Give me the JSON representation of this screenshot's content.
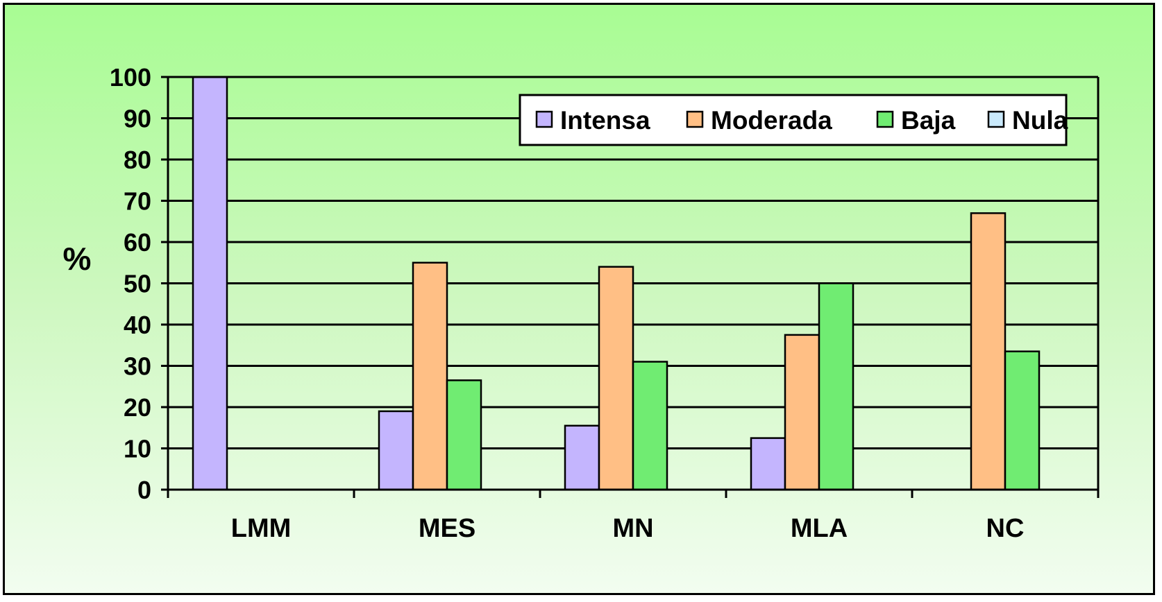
{
  "chart_data": {
    "type": "bar",
    "title": "",
    "xlabel": "",
    "ylabel": "%",
    "ylim": [
      0,
      100
    ],
    "yticks": [
      0,
      10,
      20,
      30,
      40,
      50,
      60,
      70,
      80,
      90,
      100
    ],
    "grid": true,
    "legend_position": "top-right",
    "categories": [
      "LMM",
      "MES",
      "MN",
      "MLA",
      "NC"
    ],
    "series": [
      {
        "name": "Intensa",
        "color": "#c4b5fe",
        "values": [
          100,
          19,
          15.5,
          12.5,
          0
        ]
      },
      {
        "name": "Moderada",
        "color": "#ffbf85",
        "values": [
          0,
          55,
          54,
          37.5,
          67
        ]
      },
      {
        "name": "Baja",
        "color": "#70ec72",
        "values": [
          0,
          26.5,
          31,
          50,
          33.5
        ]
      },
      {
        "name": "Nula",
        "color": "#c9e9fb",
        "values": [
          0,
          0,
          0,
          0,
          0
        ]
      }
    ]
  }
}
